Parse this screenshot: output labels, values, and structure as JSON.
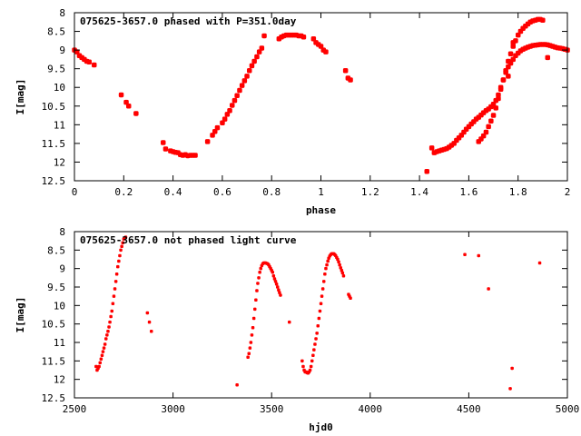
{
  "chart_data": [
    {
      "type": "scatter",
      "title": "075625-3657.0 phased with P=351.0day",
      "xlabel": "phase",
      "ylabel": "I[mag]",
      "xlim": [
        0,
        2
      ],
      "ylim": [
        12.5,
        8
      ],
      "y_inverted": true,
      "xticks": [
        "0",
        "0.2",
        "0.4",
        "0.6",
        "0.8",
        "1",
        "1.2",
        "1.4",
        "1.6",
        "1.8",
        "2"
      ],
      "yticks": [
        "8",
        "8.5",
        "9",
        "9.5",
        "10",
        "10.5",
        "11",
        "11.5",
        "12",
        "12.5"
      ],
      "point_color": "#ff0000",
      "series": [
        {
          "x": [
            0.0,
            0.01,
            0.02,
            0.03,
            0.04,
            0.05,
            0.06,
            0.08,
            0.19,
            0.21,
            0.22,
            0.25,
            0.36,
            0.37,
            0.39,
            0.4,
            0.41,
            0.42,
            0.43,
            0.44,
            0.45,
            0.46,
            0.47,
            0.48,
            0.49,
            0.54,
            0.56,
            0.57,
            0.58,
            0.6,
            0.61,
            0.62,
            0.63,
            0.64,
            0.65,
            0.66,
            0.67,
            0.68,
            0.69,
            0.7,
            0.71,
            0.72,
            0.73,
            0.74,
            0.75,
            0.76,
            0.77,
            0.83,
            0.84,
            0.85,
            0.86,
            0.87,
            0.88,
            0.89,
            0.9,
            0.91,
            0.92,
            0.93,
            0.97,
            0.98,
            0.99,
            1.0,
            1.01,
            1.02,
            1.1,
            1.11,
            1.12,
            1.43,
            1.45,
            1.46,
            1.47,
            1.48,
            1.49,
            1.5,
            1.51,
            1.52,
            1.53,
            1.54,
            1.55,
            1.56,
            1.57,
            1.58,
            1.59,
            1.6,
            1.61,
            1.62,
            1.63,
            1.64,
            1.65,
            1.66,
            1.67,
            1.68,
            1.69,
            1.7,
            1.71,
            1.72,
            1.73,
            1.74,
            1.75,
            1.76,
            1.77,
            1.78,
            1.79,
            1.8,
            1.81,
            1.82,
            1.83,
            1.84,
            1.85,
            1.86,
            1.87,
            1.88,
            1.89,
            1.9,
            1.91,
            1.92,
            1.93,
            1.94,
            1.95,
            1.96,
            1.97,
            1.98,
            1.99,
            2.0,
            1.64,
            1.65,
            1.66,
            1.67,
            1.68,
            1.69,
            1.7,
            1.71,
            1.72,
            1.73,
            1.74,
            1.75,
            1.76,
            1.77,
            1.78,
            1.79,
            1.8,
            1.81,
            1.82,
            1.83,
            1.84,
            1.85,
            1.86,
            1.87,
            1.88,
            1.89,
            1.9,
            1.92,
            1.76,
            1.78
          ],
          "y": [
            9.0,
            9.05,
            9.15,
            9.2,
            9.25,
            9.3,
            9.32,
            9.4,
            10.2,
            10.4,
            10.5,
            10.7,
            11.48,
            11.65,
            11.7,
            11.72,
            11.74,
            11.75,
            11.8,
            11.82,
            11.8,
            11.83,
            11.82,
            11.82,
            11.82,
            11.45,
            11.28,
            11.18,
            11.08,
            10.95,
            10.85,
            10.72,
            10.62,
            10.48,
            10.35,
            10.22,
            10.08,
            9.95,
            9.82,
            9.7,
            9.55,
            9.42,
            9.3,
            9.18,
            9.05,
            8.95,
            8.62,
            8.7,
            8.65,
            8.62,
            8.6,
            8.6,
            8.6,
            8.6,
            8.6,
            8.62,
            8.62,
            8.65,
            8.7,
            8.8,
            8.85,
            8.9,
            9.0,
            9.05,
            9.55,
            9.75,
            9.8,
            12.25,
            11.62,
            11.75,
            11.72,
            11.7,
            11.68,
            11.66,
            11.64,
            11.6,
            11.55,
            11.5,
            11.42,
            11.35,
            11.28,
            11.2,
            11.12,
            11.05,
            10.98,
            10.92,
            10.85,
            10.8,
            10.74,
            10.68,
            10.62,
            10.58,
            10.52,
            10.45,
            10.35,
            10.2,
            10.0,
            9.8,
            9.6,
            9.45,
            9.35,
            9.25,
            9.15,
            9.08,
            9.02,
            8.98,
            8.95,
            8.92,
            8.9,
            8.88,
            8.87,
            8.86,
            8.85,
            8.85,
            8.85,
            8.86,
            8.88,
            8.9,
            8.92,
            8.94,
            8.95,
            8.96,
            8.98,
            9.0,
            11.45,
            11.38,
            11.3,
            11.2,
            11.05,
            10.9,
            10.75,
            10.55,
            10.3,
            10.05,
            9.8,
            9.55,
            9.3,
            9.1,
            8.9,
            8.75,
            8.6,
            8.5,
            8.42,
            8.36,
            8.3,
            8.25,
            8.22,
            8.2,
            8.18,
            8.18,
            8.2,
            9.2,
            9.7,
            8.8
          ]
        }
      ]
    },
    {
      "type": "scatter",
      "title": "075625-3657.0 not phased light curve",
      "xlabel": "hjd0",
      "ylabel": "I[mag]",
      "xlim": [
        2500,
        5000
      ],
      "ylim": [
        12.5,
        8
      ],
      "y_inverted": true,
      "xticks": [
        "2500",
        "3000",
        "3500",
        "4000",
        "4500",
        "5000"
      ],
      "yticks": [
        "8",
        "8.5",
        "9",
        "9.5",
        "10",
        "10.5",
        "11",
        "11.5",
        "12",
        "12.5"
      ],
      "point_color": "#ff0000",
      "series": [
        {
          "x": [
            2610,
            2615,
            2620,
            2625,
            2630,
            2635,
            2640,
            2645,
            2650,
            2655,
            2660,
            2665,
            2670,
            2675,
            2680,
            2685,
            2690,
            2695,
            2700,
            2705,
            2710,
            2715,
            2720,
            2725,
            2730,
            2735,
            2740,
            2745,
            2750,
            2755,
            2760,
            2870,
            2880,
            2890,
            3325,
            3380,
            3385,
            3390,
            3395,
            3400,
            3405,
            3410,
            3415,
            3420,
            3425,
            3430,
            3435,
            3440,
            3445,
            3450,
            3455,
            3460,
            3465,
            3470,
            3475,
            3480,
            3485,
            3490,
            3495,
            3500,
            3505,
            3510,
            3515,
            3520,
            3525,
            3530,
            3535,
            3540,
            3545,
            3590,
            3655,
            3660,
            3665,
            3670,
            3675,
            3680,
            3685,
            3690,
            3695,
            3700,
            3705,
            3710,
            3715,
            3720,
            3725,
            3730,
            3735,
            3740,
            3745,
            3750,
            3755,
            3760,
            3765,
            3770,
            3775,
            3780,
            3785,
            3790,
            3795,
            3800,
            3805,
            3810,
            3815,
            3820,
            3825,
            3830,
            3835,
            3840,
            3845,
            3850,
            3855,
            3860,
            3865,
            3890,
            3895,
            3900,
            4480,
            4550,
            4600,
            4710,
            4720,
            4860
          ],
          "y": [
            11.65,
            11.75,
            11.7,
            11.65,
            11.55,
            11.45,
            11.35,
            11.25,
            11.15,
            11.05,
            10.9,
            10.8,
            10.7,
            10.58,
            10.45,
            10.3,
            10.15,
            9.95,
            9.75,
            9.55,
            9.35,
            9.15,
            8.95,
            8.8,
            8.65,
            8.5,
            8.4,
            8.3,
            8.2,
            8.18,
            8.15,
            10.2,
            10.45,
            10.7,
            12.15,
            11.4,
            11.3,
            11.15,
            11.0,
            10.8,
            10.6,
            10.35,
            10.1,
            9.85,
            9.6,
            9.4,
            9.25,
            9.1,
            9.0,
            8.92,
            8.87,
            8.85,
            8.85,
            8.85,
            8.86,
            8.87,
            8.9,
            8.95,
            9.0,
            9.05,
            9.1,
            9.2,
            9.28,
            9.35,
            9.42,
            9.5,
            9.58,
            9.65,
            9.72,
            10.45,
            11.5,
            11.65,
            11.75,
            11.8,
            11.8,
            11.82,
            11.83,
            11.8,
            11.75,
            11.65,
            11.5,
            11.35,
            11.2,
            11.05,
            10.9,
            10.75,
            10.55,
            10.35,
            10.15,
            9.95,
            9.75,
            9.55,
            9.35,
            9.15,
            9.0,
            8.9,
            8.8,
            8.72,
            8.66,
            8.62,
            8.6,
            8.6,
            8.6,
            8.62,
            8.65,
            8.7,
            8.75,
            8.82,
            8.9,
            8.98,
            9.05,
            9.12,
            9.2,
            9.7,
            9.75,
            9.8,
            8.62,
            8.65,
            9.55,
            12.25,
            11.7,
            8.85
          ]
        }
      ]
    }
  ]
}
